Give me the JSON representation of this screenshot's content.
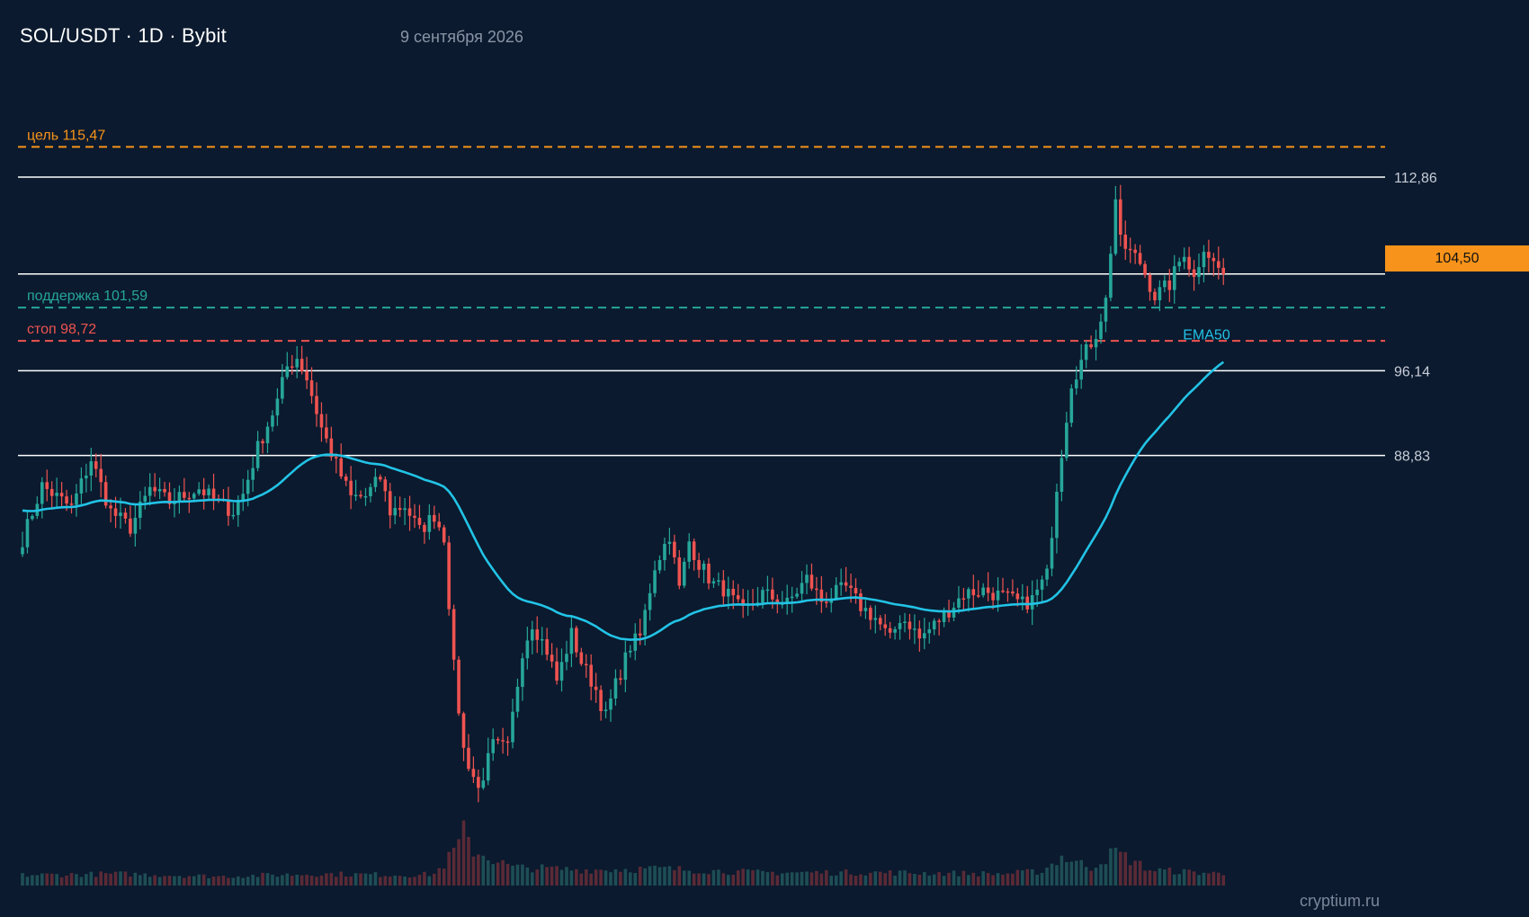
{
  "header": {
    "title": "SOL/USDT · 1D · Bybit",
    "date": "9 сентября 2026"
  },
  "watermark": "cryptium.ru",
  "colors": {
    "background": "#0b1a2e",
    "up": "#26a69a",
    "down": "#ef5350",
    "ema": "#22c3e6",
    "target": "#f7931a",
    "support": "#26a69a",
    "stop": "#ef5350",
    "level": "#ffffff",
    "price_tag": "#f7931a"
  },
  "chart_data": {
    "type": "candlestick",
    "title": "SOL/USDT · 1D · Bybit",
    "ylim": [
      60,
      120
    ],
    "grid": false,
    "current_price": {
      "value": 104.5,
      "label": "104,50"
    },
    "levels": [
      {
        "name": "target",
        "value": 115.47,
        "label": "цель 115,47",
        "style": "dashed",
        "color": "#f7931a"
      },
      {
        "name": "resistance",
        "value": 112.86,
        "label": "112,86",
        "style": "solid",
        "color": "#ffffff"
      },
      {
        "name": "current",
        "value": 104.5,
        "label": "",
        "style": "solid",
        "color": "#ffffff"
      },
      {
        "name": "support",
        "value": 101.59,
        "label": "поддержка 101,59",
        "style": "dashed",
        "color": "#26a69a"
      },
      {
        "name": "stop",
        "value": 98.72,
        "label": "стоп 98,72",
        "style": "dashed",
        "color": "#ef5350"
      },
      {
        "name": "level-2",
        "value": 96.14,
        "label": "96,14",
        "style": "solid",
        "color": "#ffffff"
      },
      {
        "name": "level-3",
        "value": 88.83,
        "label": "88,83",
        "style": "solid",
        "color": "#ffffff"
      }
    ],
    "ema": {
      "name": "EMA50",
      "color": "#22c3e6"
    },
    "close_path": [
      [
        0,
        81.6
      ],
      [
        4,
        86.2
      ],
      [
        10,
        84.3
      ],
      [
        14,
        88.5
      ],
      [
        18,
        84.0
      ],
      [
        22,
        82.6
      ],
      [
        26,
        85.9
      ],
      [
        30,
        84.8
      ],
      [
        36,
        86.0
      ],
      [
        40,
        84.7
      ],
      [
        43,
        84.0
      ],
      [
        45,
        85.5
      ],
      [
        48,
        89.5
      ],
      [
        52,
        93.5
      ],
      [
        54,
        96.5
      ],
      [
        56,
        97.3
      ],
      [
        58,
        95.5
      ],
      [
        61,
        91.2
      ],
      [
        64,
        88.0
      ],
      [
        67,
        85.2
      ],
      [
        70,
        85.3
      ],
      [
        73,
        86.9
      ],
      [
        75,
        84.0
      ],
      [
        78,
        84.5
      ],
      [
        81,
        82.3
      ],
      [
        84,
        83.7
      ],
      [
        86,
        81.8
      ],
      [
        88,
        70.5
      ],
      [
        90,
        63.4
      ],
      [
        93,
        60.0
      ],
      [
        96,
        63.8
      ],
      [
        99,
        63.5
      ],
      [
        102,
        72.0
      ],
      [
        104,
        74.4
      ],
      [
        107,
        72.0
      ],
      [
        109,
        69.4
      ],
      [
        112,
        73.4
      ],
      [
        114,
        71.0
      ],
      [
        117,
        68.6
      ],
      [
        119,
        66.3
      ],
      [
        121,
        69.0
      ],
      [
        124,
        72.4
      ],
      [
        126,
        73.2
      ],
      [
        129,
        79.3
      ],
      [
        132,
        82.0
      ],
      [
        134,
        77.3
      ],
      [
        136,
        81.4
      ],
      [
        138,
        79.5
      ],
      [
        141,
        77.7
      ],
      [
        143,
        77.3
      ],
      [
        147,
        75.2
      ],
      [
        151,
        76.9
      ],
      [
        156,
        76.0
      ],
      [
        160,
        78.2
      ],
      [
        163,
        76.3
      ],
      [
        168,
        77.4
      ],
      [
        171,
        75.8
      ],
      [
        174,
        74.8
      ],
      [
        177,
        72.9
      ],
      [
        179,
        74.8
      ],
      [
        181,
        74.3
      ],
      [
        183,
        73.0
      ],
      [
        186,
        74.2
      ],
      [
        189,
        75.5
      ],
      [
        192,
        76.9
      ],
      [
        196,
        77.2
      ],
      [
        201,
        76.5
      ],
      [
        204,
        76.0
      ],
      [
        206,
        76.4
      ],
      [
        209,
        78.5
      ],
      [
        211,
        86.2
      ],
      [
        214,
        95.2
      ],
      [
        217,
        97.8
      ],
      [
        219,
        99.4
      ],
      [
        221,
        102.2
      ],
      [
        223,
        111.0
      ],
      [
        224,
        107.2
      ],
      [
        228,
        105.5
      ],
      [
        231,
        102.6
      ],
      [
        234,
        103.6
      ],
      [
        237,
        106.5
      ],
      [
        239,
        104.1
      ],
      [
        241,
        107.0
      ],
      [
        243,
        105.4
      ],
      [
        245,
        104.5
      ]
    ],
    "volume_path": [
      [
        0,
        0.8
      ],
      [
        20,
        0.9
      ],
      [
        40,
        0.7
      ],
      [
        60,
        0.9
      ],
      [
        80,
        0.8
      ],
      [
        84,
        0.9
      ],
      [
        86,
        1.6
      ],
      [
        89,
        3.2
      ],
      [
        90,
        4.1
      ],
      [
        92,
        2.7
      ],
      [
        96,
        2.0
      ],
      [
        100,
        1.4
      ],
      [
        115,
        1.2
      ],
      [
        130,
        1.3
      ],
      [
        150,
        1.0
      ],
      [
        175,
        1.0
      ],
      [
        200,
        0.9
      ],
      [
        208,
        1.1
      ],
      [
        212,
        2.2
      ],
      [
        218,
        1.4
      ],
      [
        223,
        2.6
      ],
      [
        230,
        1.2
      ],
      [
        245,
        0.9
      ]
    ]
  }
}
